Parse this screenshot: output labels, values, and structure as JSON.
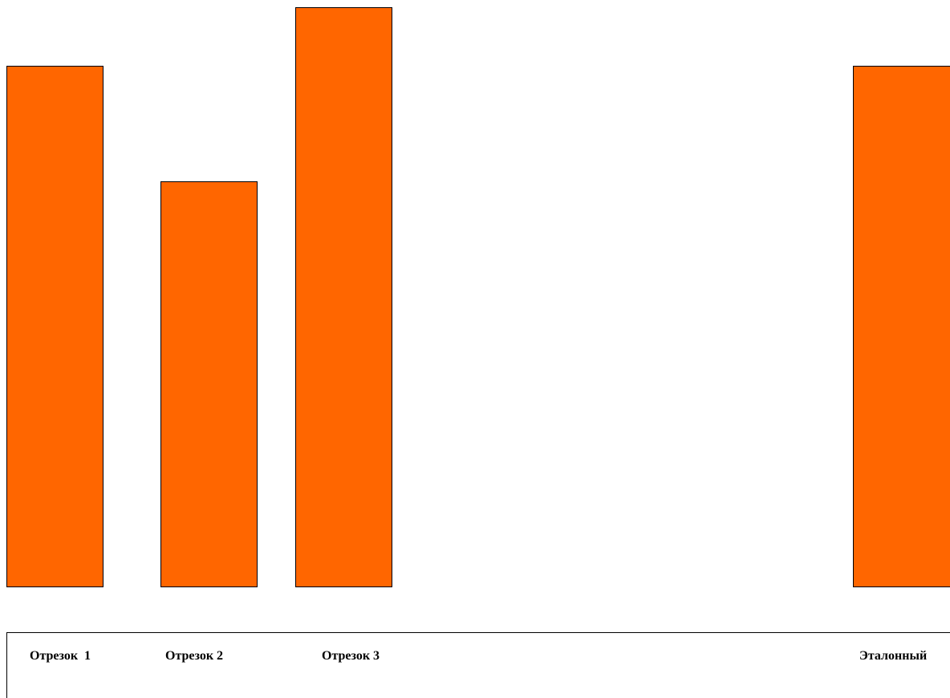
{
  "bar_color": "#ff6600",
  "border_color": "#000000",
  "segments": [
    {
      "label": "Отрезок  1",
      "length": 9
    },
    {
      "label": "Отрезок 2",
      "length": 7
    },
    {
      "label": "Отрезок 3",
      "length": 10
    },
    {
      "label": "Эталонный",
      "length": 9
    }
  ]
}
